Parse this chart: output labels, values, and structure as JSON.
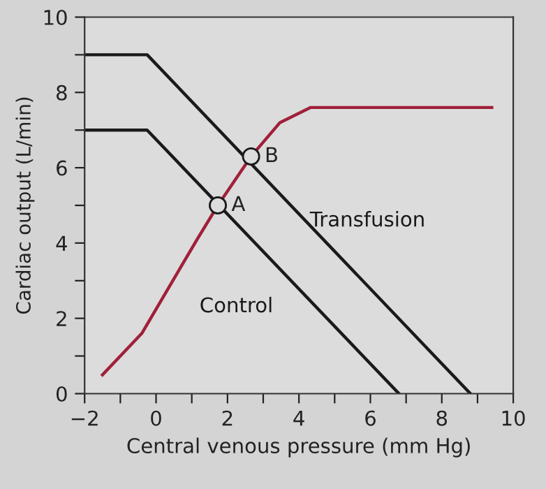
{
  "chart_data": {
    "type": "line",
    "xlabel": "Central venous pressure (mm Hg)",
    "ylabel": "Cardiac output (L/min)",
    "xlim": [
      -2,
      10
    ],
    "ylim": [
      0,
      10
    ],
    "xticks": [
      -2,
      {
        "value": -1,
        "label": null
      },
      0,
      {
        "value": 1,
        "label": null
      },
      2,
      {
        "value": 3,
        "label": null
      },
      4,
      {
        "value": 5,
        "label": null
      },
      6,
      {
        "value": 7,
        "label": null
      },
      8,
      {
        "value": 9,
        "label": null
      },
      10
    ],
    "yticks": [
      0,
      {
        "value": 1,
        "label": null
      },
      2,
      {
        "value": 3,
        "label": null
      },
      4,
      {
        "value": 5,
        "label": null
      },
      6,
      {
        "value": 7,
        "label": null
      },
      8,
      {
        "value": 9,
        "label": null
      },
      10
    ],
    "grid": false,
    "legend": false,
    "series": [
      {
        "name": "Control",
        "color": "#1a1a1a",
        "x": [
          -2,
          -0.25,
          6.8
        ],
        "values": [
          7,
          7,
          0
        ]
      },
      {
        "name": "Transfusion",
        "color": "#1a1a1a",
        "x": [
          -2,
          -0.25,
          8.8
        ],
        "values": [
          9,
          9,
          0
        ]
      },
      {
        "color": "#a0203a",
        "x": [
          -1.5,
          -0.4,
          1.15,
          1.73,
          2.66,
          3.47,
          4.33,
          9.4
        ],
        "values": [
          0.5,
          1.6,
          4.1,
          5.0,
          6.3,
          7.2,
          7.6,
          7.6
        ]
      },
      {
        "type": "scatter",
        "marker": "circle",
        "color": "#1a1a1a",
        "x": [
          1.73,
          2.66
        ],
        "values": [
          5.0,
          6.3
        ]
      }
    ],
    "annotations": [
      {
        "text": "A",
        "x": 1.73,
        "y": 5.0
      },
      {
        "text": "B",
        "x": 2.66,
        "y": 6.3
      }
    ]
  }
}
